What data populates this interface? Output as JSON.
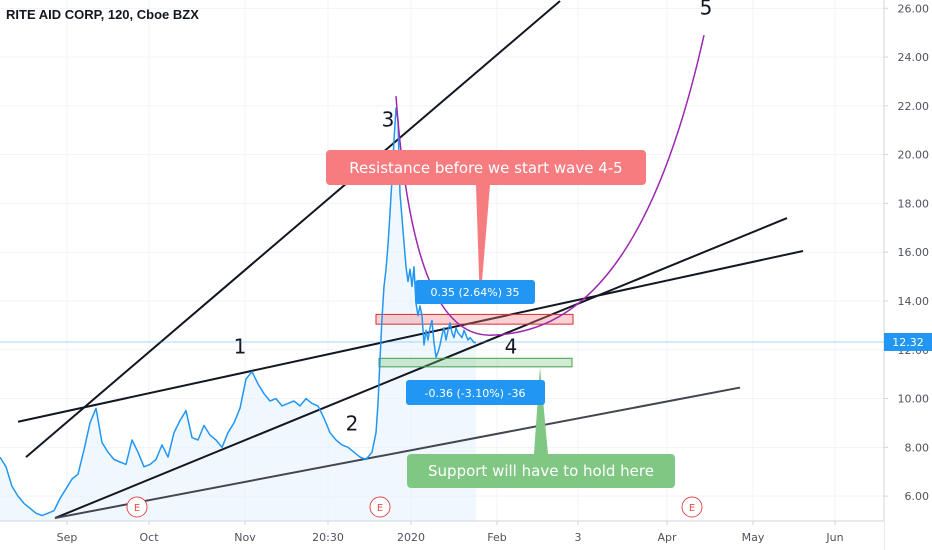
{
  "chart_data": {
    "type": "line",
    "title": "RITE AID CORP, 120, Cboe BZX",
    "xlabel": "",
    "ylabel": "",
    "ylim": [
      5.0,
      26.3
    ],
    "y_ticks": [
      "6.00",
      "8.00",
      "10.00",
      "12.00",
      "14.00",
      "16.00",
      "18.00",
      "20.00",
      "22.00",
      "24.00",
      "26.00"
    ],
    "x_ticks": [
      "Sep",
      "Oct",
      "Nov",
      "20:30",
      "2020",
      "Feb",
      "3",
      "Apr",
      "May",
      "Jun"
    ],
    "last_price": "12.32",
    "colors": {
      "price": "#2196f3",
      "area": "#e3f2fd",
      "resistance": "#f77c80",
      "support": "#81c784",
      "projection": "#9c27b0",
      "measure": "#2196f3",
      "earnings": "#e04d4d"
    },
    "series": [
      {
        "x": [
          0,
          6,
          12,
          18,
          24,
          30,
          36,
          42,
          48,
          54,
          60,
          66,
          72,
          78,
          84,
          90,
          96,
          102,
          108,
          114,
          120,
          126,
          132,
          138,
          144,
          150,
          156,
          162,
          168,
          174,
          180,
          186,
          192,
          198,
          204,
          210,
          216,
          222,
          228,
          234,
          240,
          246,
          252,
          258,
          264,
          270,
          276,
          282,
          288,
          294,
          300,
          306,
          312,
          318,
          324,
          330,
          336,
          342,
          348,
          354,
          360,
          366,
          372,
          376,
          378,
          380,
          382,
          384,
          386,
          388,
          390,
          392,
          394,
          396,
          398,
          400,
          402,
          404,
          406,
          408,
          410,
          412,
          414,
          416,
          418,
          420,
          422,
          424,
          426,
          428,
          430,
          432,
          434,
          436,
          438,
          440,
          442,
          444,
          446,
          448,
          450,
          452,
          454,
          456,
          458,
          460,
          462,
          464,
          466,
          468,
          470,
          472,
          474,
          476
        ],
        "values": [
          7.6,
          7.2,
          6.4,
          6.0,
          5.7,
          5.5,
          5.3,
          5.2,
          5.3,
          5.4,
          5.9,
          6.3,
          6.7,
          6.9,
          7.9,
          9.0,
          9.6,
          8.2,
          7.8,
          7.5,
          7.4,
          7.3,
          8.3,
          7.8,
          7.2,
          7.3,
          7.5,
          8.1,
          7.6,
          8.6,
          9.1,
          9.5,
          8.4,
          8.3,
          8.9,
          8.5,
          8.3,
          8.0,
          8.6,
          9.0,
          9.6,
          10.8,
          11.1,
          10.6,
          10.2,
          9.9,
          10.0,
          9.7,
          9.8,
          9.9,
          9.7,
          10.0,
          9.8,
          9.7,
          9.2,
          8.6,
          8.3,
          8.1,
          8.0,
          7.8,
          7.6,
          7.5,
          7.8,
          8.6,
          9.8,
          11.6,
          13.3,
          14.6,
          15.3,
          16.3,
          17.6,
          19.0,
          20.6,
          21.9,
          21.4,
          18.4,
          17.4,
          16.4,
          15.4,
          14.8,
          15.3,
          14.6,
          15.4,
          13.9,
          13.4,
          13.8,
          13.4,
          12.2,
          12.8,
          12.4,
          12.9,
          13.2,
          12.3,
          11.7,
          11.9,
          12.2,
          12.6,
          12.9,
          12.4,
          12.8,
          13.1,
          12.7,
          12.5,
          12.9,
          12.7,
          12.6,
          12.5,
          12.8,
          12.6,
          12.4,
          12.5,
          12.4,
          12.3,
          12.3
        ]
      }
    ],
    "trendlines": [
      {
        "x1": 26,
        "y1": 7.6,
        "x2": 560,
        "y2": 26.3,
        "stroke": "#131722"
      },
      {
        "x1": 18,
        "y1": 9.05,
        "x2": 803,
        "y2": 16.05,
        "stroke": "#131722"
      },
      {
        "x1": 55,
        "y1": 5.1,
        "x2": 787,
        "y2": 17.4,
        "stroke": "#131722"
      },
      {
        "x1": 55,
        "y1": 5.1,
        "x2": 740,
        "y2": 10.45,
        "stroke": "#434651"
      }
    ],
    "projection": {
      "from": [
        396,
        22.4
      ],
      "vertex": [
        492,
        12.6
      ],
      "to": [
        704,
        24.9
      ]
    },
    "resistance_zone": {
      "x1": 376,
      "x2": 573,
      "y_low": 13.05,
      "y_high": 13.45
    },
    "support_zone": {
      "x1": 379,
      "x2": 572,
      "y_low": 11.3,
      "y_high": 11.65
    },
    "wave_labels": [
      {
        "text": "1",
        "x": 240,
        "y": 11.85
      },
      {
        "text": "2",
        "x": 352,
        "y": 8.7
      },
      {
        "text": "3",
        "x": 388,
        "y": 21.15
      },
      {
        "text": "4",
        "x": 511,
        "y": 11.85
      },
      {
        "text": "5",
        "x": 706,
        "y": 25.75
      }
    ],
    "annotations": {
      "resistance": "Resistance before we start wave 4-5",
      "support": "Support will have to hold here",
      "measure_up": "0.35 (2.64%) 35",
      "measure_down": "-0.36 (-3.10%) -36"
    },
    "earnings": [
      {
        "x": 137,
        "label": "E"
      },
      {
        "x": 380,
        "label": "E"
      },
      {
        "x": 692,
        "label": "E"
      }
    ],
    "x_tick_pos": [
      67,
      149,
      245,
      328,
      411,
      497,
      578,
      667,
      753,
      835
    ]
  }
}
